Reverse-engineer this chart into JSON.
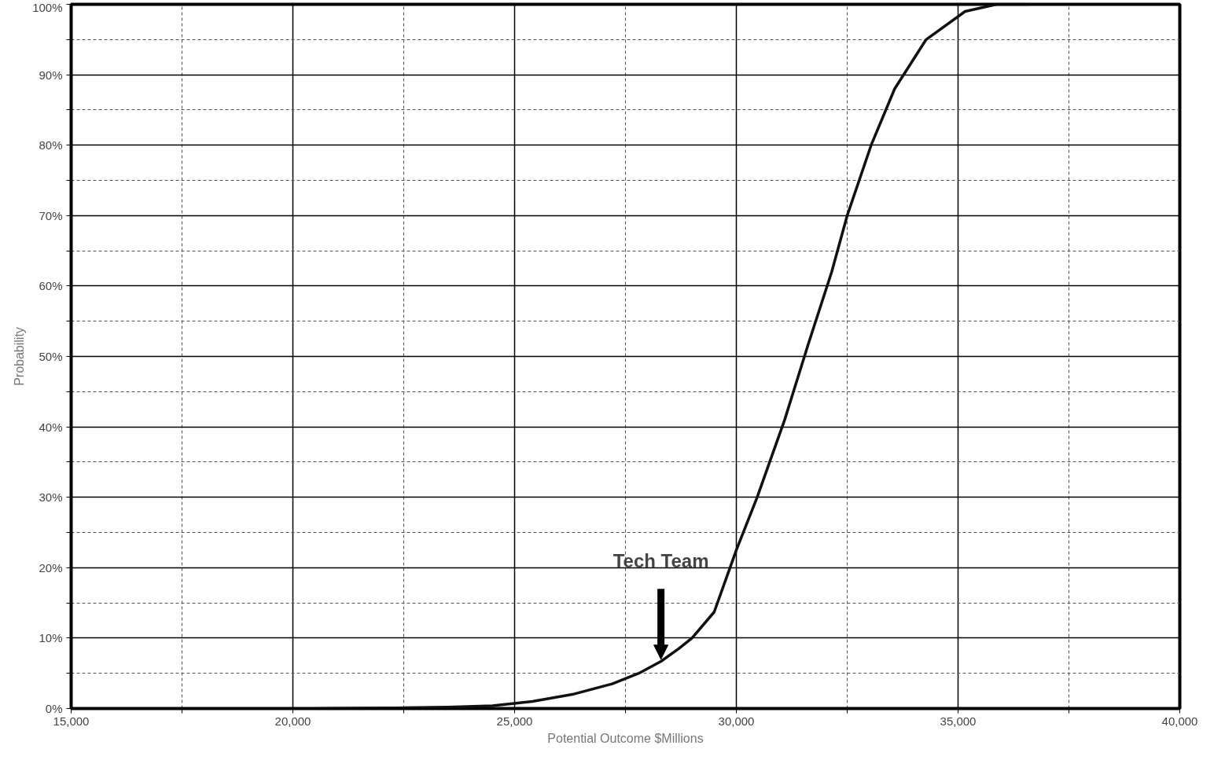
{
  "chart_data": {
    "type": "line",
    "xlabel": "Potential Outcome $Millions",
    "ylabel": "Probability",
    "x": [
      20600,
      21500,
      22500,
      23500,
      24500,
      25400,
      26300,
      27200,
      27800,
      28300,
      28700,
      29000,
      29500,
      30000,
      30470,
      31090,
      31620,
      32150,
      32500,
      33040,
      33570,
      34280,
      35160,
      35870,
      36600
    ],
    "series": [
      {
        "color": "#111111",
        "values": [
          0,
          0.05,
          0.1,
          0.2,
          0.4,
          1.0,
          2.0,
          3.5,
          5.0,
          6.7,
          8.5,
          10,
          13.7,
          22.5,
          30,
          41,
          51.7,
          62,
          70,
          80,
          88,
          95,
          99,
          100,
          100
        ]
      }
    ],
    "xlim": [
      15000,
      40000
    ],
    "xticks": [
      {
        "value": 15000,
        "label": "15,000"
      },
      {
        "value": 17500,
        "label": null
      },
      {
        "value": 20000,
        "label": "20,000"
      },
      {
        "value": 22500,
        "label": null
      },
      {
        "value": 25000,
        "label": "25,000"
      },
      {
        "value": 27500,
        "label": null
      },
      {
        "value": 30000,
        "label": "30,000"
      },
      {
        "value": 32500,
        "label": null
      },
      {
        "value": 35000,
        "label": "35,000"
      },
      {
        "value": 37500,
        "label": null
      },
      {
        "value": 40000,
        "label": "40,000"
      }
    ],
    "ylim": [
      0,
      100
    ],
    "yticks": [
      {
        "value": 0,
        "label": "0%"
      },
      {
        "value": 5,
        "label": null
      },
      {
        "value": 10,
        "label": "10%"
      },
      {
        "value": 15,
        "label": null
      },
      {
        "value": 20,
        "label": "20%"
      },
      {
        "value": 25,
        "label": null
      },
      {
        "value": 30,
        "label": "30%"
      },
      {
        "value": 35,
        "label": null
      },
      {
        "value": 40,
        "label": "40%"
      },
      {
        "value": 45,
        "label": null
      },
      {
        "value": 50,
        "label": "50%"
      },
      {
        "value": 55,
        "label": null
      },
      {
        "value": 60,
        "label": "60%"
      },
      {
        "value": 65,
        "label": null
      },
      {
        "value": 70,
        "label": "70%"
      },
      {
        "value": 75,
        "label": null
      },
      {
        "value": 80,
        "label": "80%"
      },
      {
        "value": 85,
        "label": null
      },
      {
        "value": 90,
        "label": "90%"
      },
      {
        "value": 95,
        "label": null
      },
      {
        "value": 100,
        "label": "100%"
      }
    ],
    "grid": true,
    "line_style": "solid",
    "annotations": [
      {
        "text": "Tech Team",
        "x": 28300,
        "y": 7
      }
    ]
  }
}
